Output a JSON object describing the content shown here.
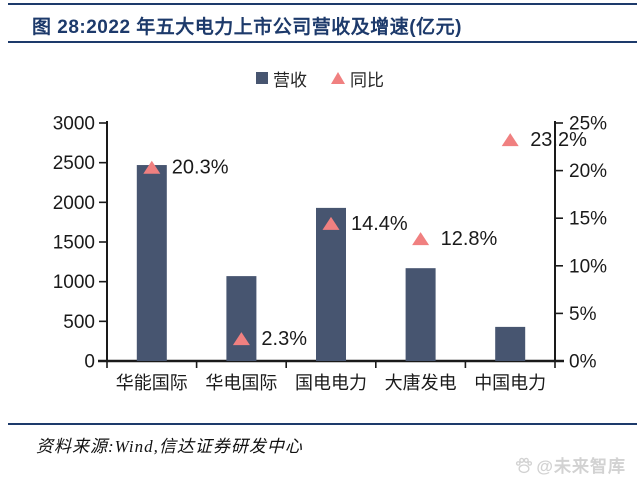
{
  "figure": {
    "title": "图 28:2022 年五大电力上市公司营收及增速(亿元)",
    "source": "资料来源:Wind,信达证券研发中心",
    "watermark": "@未来智库"
  },
  "legend": {
    "items": [
      {
        "label": "营收",
        "marker": "square-icon"
      },
      {
        "label": "同比",
        "marker": "triangle-icon"
      }
    ]
  },
  "colors": {
    "navy": "#1d3a6b",
    "bar": "#475570",
    "triangle": "#f08080",
    "text": "#1a1a1a",
    "watermark": "#d2d2d2"
  },
  "chart_data": {
    "type": "combo",
    "title": "2022 年五大电力上市公司营收及增速(亿元)",
    "categories": [
      "华能国际",
      "华电国际",
      "国电电力",
      "大唐发电",
      "中国电力"
    ],
    "series": [
      {
        "name": "营收",
        "type": "bar",
        "axis": "left",
        "values": [
          2470,
          1070,
          1930,
          1170,
          430
        ]
      },
      {
        "name": "同比",
        "type": "scatter",
        "marker": "triangle",
        "axis": "right",
        "values": [
          20.3,
          2.3,
          14.4,
          12.8,
          23.2
        ],
        "labels": [
          "20.3%",
          "2.3%",
          "14.4%",
          "12.8%",
          "23.2%"
        ]
      }
    ],
    "left_axis": {
      "min": 0,
      "max": 3000,
      "ticks": [
        "0",
        "500",
        "1000",
        "1500",
        "2000",
        "2500",
        "3000"
      ]
    },
    "right_axis": {
      "min": 0,
      "max": 25,
      "ticks": [
        "0%",
        "5%",
        "10%",
        "15%",
        "20%",
        "25%"
      ]
    },
    "grid": false,
    "legend_position": "top-center"
  }
}
